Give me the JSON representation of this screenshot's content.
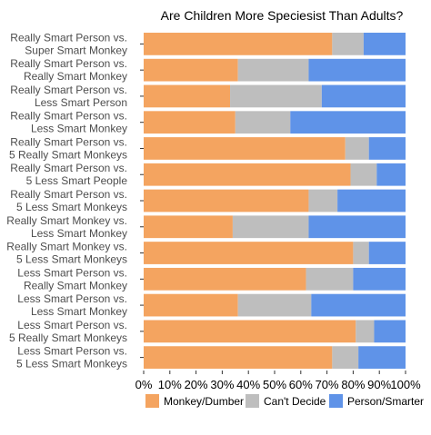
{
  "chart_data": {
    "type": "bar",
    "orientation": "horizontal",
    "stacked": "percent",
    "title": "Are Children More Speciesist Than Adults?",
    "xlabel": "",
    "ylabel": "",
    "xlim": [
      0,
      100
    ],
    "x_ticks": [
      "0%",
      "10%",
      "20%",
      "30%",
      "40%",
      "50%",
      "60%",
      "70%",
      "80%",
      "90%",
      "100%"
    ],
    "grid": false,
    "legend_position": "bottom",
    "categories": [
      [
        "Really Smart Person vs.",
        "Super Smart Monkey"
      ],
      [
        "Really Smart Person vs.",
        "Really Smart Monkey"
      ],
      [
        "Really Smart Person vs.",
        "Less Smart Person"
      ],
      [
        "Really Smart Person vs.",
        "Less Smart Monkey"
      ],
      [
        "Really Smart Person vs.",
        "5 Really Smart Monkeys"
      ],
      [
        "Really Smart Person vs.",
        "5 Less Smart People"
      ],
      [
        "Really Smart Person vs.",
        "5 Less Smart Monkeys"
      ],
      [
        "Really Smart Monkey vs.",
        "Less Smart Monkey"
      ],
      [
        "Really Smart Monkey vs.",
        "5 Less Smart Monkeys"
      ],
      [
        "Less Smart Person vs.",
        "Really Smart Monkey"
      ],
      [
        "Less Smart Person vs.",
        "Less Smart Monkey"
      ],
      [
        "Less Smart Person vs.",
        "5 Really Smart Monkeys"
      ],
      [
        "Less Smart Person vs.",
        "5 Less Smart Monkeys"
      ]
    ],
    "series": [
      {
        "name": "Monkey/Dumber",
        "color": "#f4a460",
        "values": [
          72,
          36,
          33,
          35,
          77,
          79,
          63,
          34,
          80,
          62,
          36,
          81,
          72
        ]
      },
      {
        "name": "Can't Decide",
        "color": "#bebebe",
        "values": [
          12,
          27,
          35,
          21,
          9,
          10,
          11,
          29,
          6,
          18,
          28,
          7,
          10
        ]
      },
      {
        "name": "Person/Smarter",
        "color": "#5f93e8",
        "values": [
          16,
          37,
          32,
          44,
          14,
          11,
          26,
          37,
          14,
          20,
          36,
          12,
          18
        ]
      }
    ]
  }
}
